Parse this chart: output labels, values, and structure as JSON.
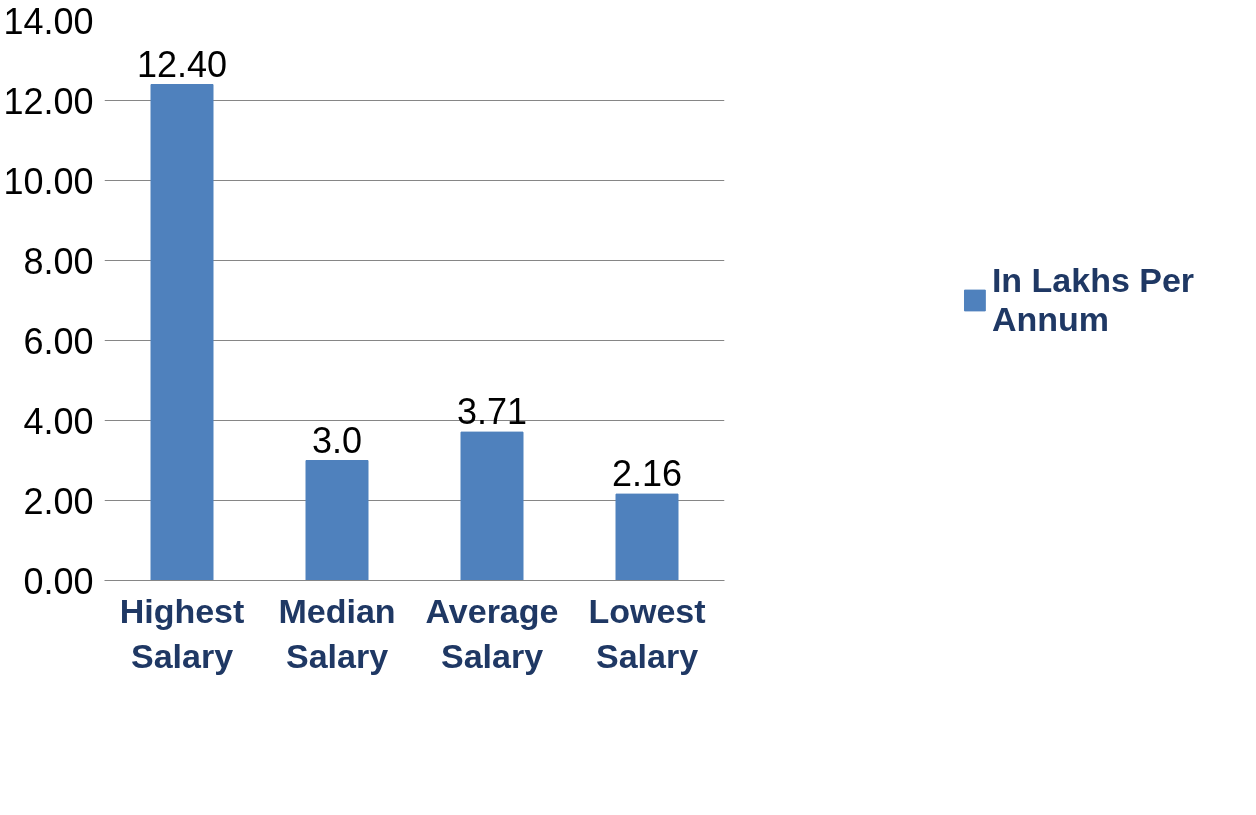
{
  "chart_data": {
    "type": "bar",
    "categories": [
      "Highest Salary",
      "Median Salary",
      "Average Salary",
      "Lowest Salary"
    ],
    "series": [
      {
        "name": "In Lakhs Per Annum",
        "color": "#4f81bd",
        "values": [
          12.4,
          3.0,
          3.71,
          2.16
        ]
      }
    ],
    "value_labels": [
      "12.40",
      "3.0",
      "3.71",
      "2.16"
    ],
    "ylim": [
      0,
      14
    ],
    "yticks": [
      {
        "value": 0,
        "label": "0.00"
      },
      {
        "value": 2,
        "label": "2.00"
      },
      {
        "value": 4,
        "label": "4.00"
      },
      {
        "value": 6,
        "label": "6.00"
      },
      {
        "value": 8,
        "label": "8.00"
      },
      {
        "value": 10,
        "label": "10.00"
      },
      {
        "value": 12,
        "label": "12.00"
      },
      {
        "value": 14,
        "label": "14.00"
      }
    ],
    "grid": "y",
    "legend": "right"
  }
}
